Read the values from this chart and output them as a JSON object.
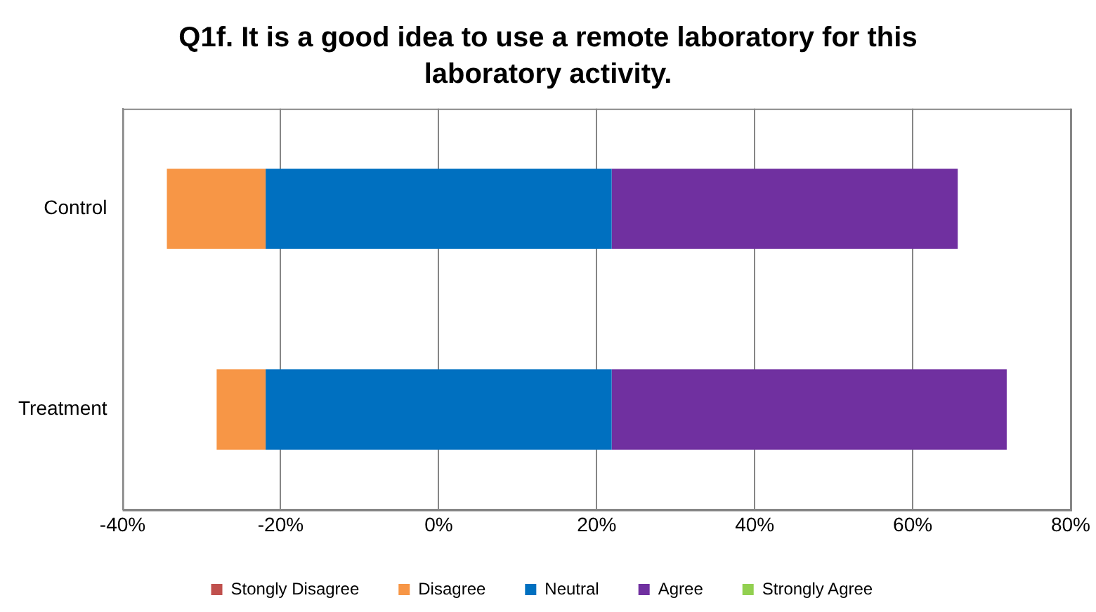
{
  "chart_data": {
    "type": "bar",
    "orientation": "horizontal",
    "title": "Q1f. It is a good idea to use a remote laboratory for this laboratory activity.",
    "categories": [
      "Control",
      "Treatment"
    ],
    "series": [
      {
        "name": "Stongly Disagree",
        "color": "#c0504d",
        "values": [
          0,
          0
        ]
      },
      {
        "name": "Disagree",
        "color": "#f79646",
        "values": [
          12.5,
          6.2
        ],
        "base": [
          -34.4,
          -28.1
        ]
      },
      {
        "name": "Neutral",
        "color": "#0070c0",
        "values": [
          43.8,
          43.8
        ],
        "base": [
          -21.9,
          -21.9
        ]
      },
      {
        "name": "Agree",
        "color": "#7030a0",
        "values": [
          43.8,
          50
        ],
        "base": [
          21.9,
          21.9
        ]
      },
      {
        "name": "Strongly Agree",
        "color": "#92d050",
        "values": [
          0,
          0
        ]
      }
    ],
    "xlim": [
      -40,
      80
    ],
    "xticks": [
      {
        "value": -40,
        "label": "-40%"
      },
      {
        "value": -20,
        "label": "-20%"
      },
      {
        "value": 0,
        "label": "0%"
      },
      {
        "value": 20,
        "label": "20%"
      },
      {
        "value": 40,
        "label": "40%"
      },
      {
        "value": 60,
        "label": "60%"
      },
      {
        "value": 80,
        "label": "80%"
      }
    ],
    "grid": "x",
    "legend": "bottom"
  }
}
